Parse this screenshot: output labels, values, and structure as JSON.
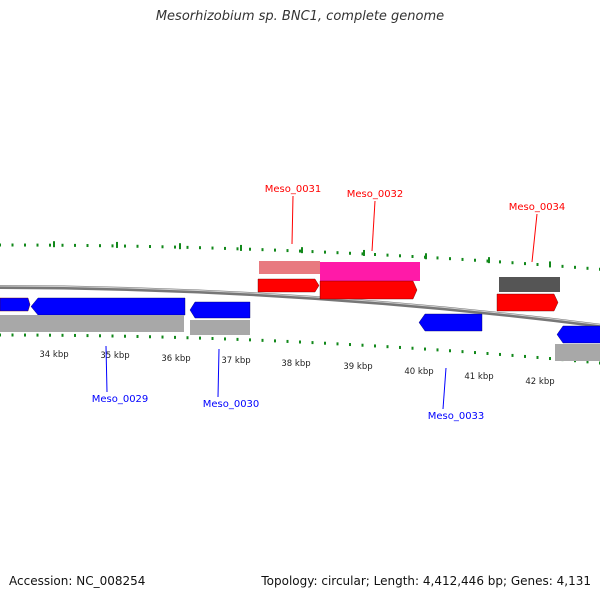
{
  "title": "Mesorhizobium sp. BNC1, complete genome",
  "footer": {
    "accession": "Accession: NC_008254",
    "info": "Topology: circular; Length: 4,412,446 bp; Genes: 4,131"
  },
  "colors": {
    "forward_cds": "#ff0000",
    "reverse_cds": "#0000ff",
    "highlight_a": "#e87a80",
    "highlight_b": "#ff1aa8",
    "gray_track": "#a8a8a8",
    "dark_track": "#555555",
    "tick": "#11881a",
    "backbone": "#777777"
  },
  "axis": {
    "ticks": [
      "34 kbp",
      "35 kbp",
      "36 kbp",
      "37 kbp",
      "38 kbp",
      "39 kbp",
      "40 kbp",
      "41 kbp",
      "42 kbp"
    ]
  },
  "genes": {
    "forward": [
      "Meso_0031",
      "Meso_0032",
      "Meso_0034"
    ],
    "reverse": [
      "Meso_0029",
      "Meso_0030",
      "Meso_0033"
    ]
  }
}
